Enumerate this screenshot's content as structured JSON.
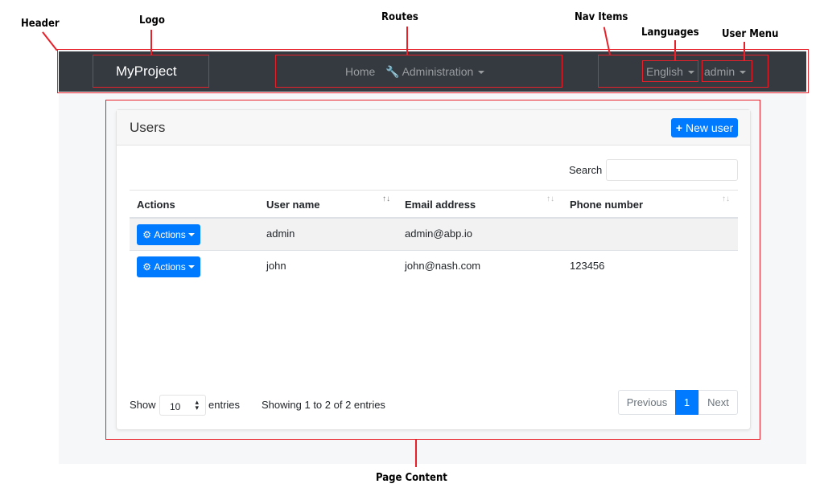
{
  "annotations": {
    "header": "Header",
    "logo": "Logo",
    "routes": "Routes",
    "nav_items": "Nav Items",
    "languages": "Languages",
    "user_menu": "User Menu",
    "page_content": "Page Content"
  },
  "navbar": {
    "brand": "MyProject",
    "routes": [
      {
        "label": "Home"
      },
      {
        "label": "Administration",
        "icon": "wrench-icon"
      }
    ],
    "language": "English",
    "user": "admin"
  },
  "card": {
    "title": "Users",
    "new_button": "New user",
    "search_label": "Search",
    "search_value": "",
    "columns": [
      "Actions",
      "User name",
      "Email address",
      "Phone number"
    ],
    "rows": [
      {
        "action": "Actions",
        "username": "admin",
        "email": "admin@abp.io",
        "phone": ""
      },
      {
        "action": "Actions",
        "username": "john",
        "email": "john@nash.com",
        "phone": "123456"
      }
    ],
    "show_label": "Show",
    "page_size": "10",
    "entries_label": "entries",
    "info": "Showing 1 to 2 of 2 entries",
    "pagination": {
      "previous": "Previous",
      "current": "1",
      "next": "Next"
    }
  },
  "colors": {
    "navbar": "#343a40",
    "primary": "#007bff",
    "annotation": "#e8202a"
  }
}
